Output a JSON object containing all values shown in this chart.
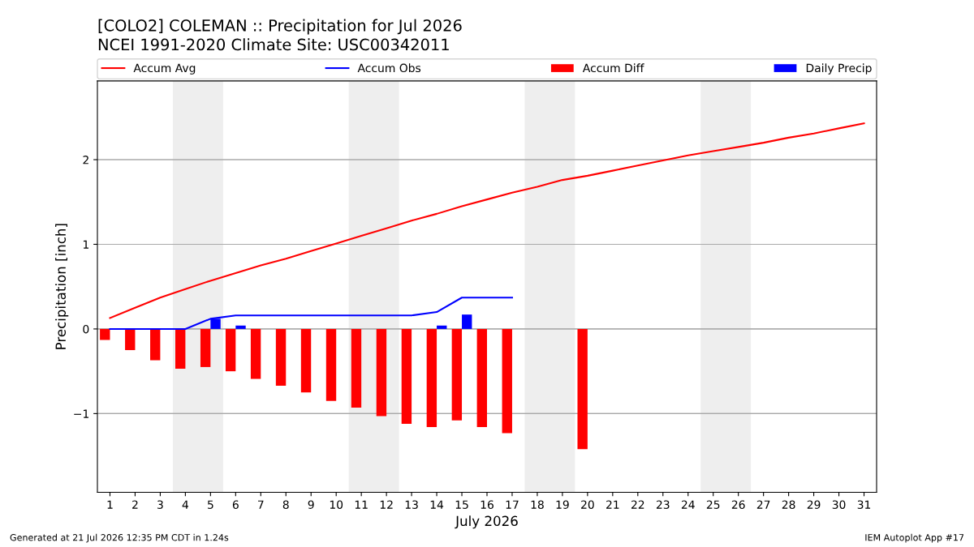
{
  "chart_data": {
    "type": "line",
    "title": "[COLO2] COLEMAN :: Precipitation for Jul 2026",
    "subtitle": "NCEI 1991-2020 Climate Site: USC00342011",
    "xlabel": "July 2026",
    "ylabel": "Precipitation [inch]",
    "x": [
      1,
      2,
      3,
      4,
      5,
      6,
      7,
      8,
      9,
      10,
      11,
      12,
      13,
      14,
      15,
      16,
      17,
      18,
      19,
      20,
      21,
      22,
      23,
      24,
      25,
      26,
      27,
      28,
      29,
      30,
      31
    ],
    "series": [
      {
        "name": "Accum Avg",
        "color": "#ff0000",
        "values": [
          0.13,
          0.25,
          0.37,
          0.47,
          0.57,
          0.66,
          0.75,
          0.83,
          0.92,
          1.01,
          1.1,
          1.19,
          1.28,
          1.36,
          1.45,
          1.53,
          1.61,
          1.68,
          1.76,
          1.81,
          1.87,
          1.93,
          1.99,
          2.05,
          2.1,
          2.15,
          2.2,
          2.26,
          2.31,
          2.37,
          2.43
        ]
      },
      {
        "name": "Accum Obs",
        "color": "#0000ff",
        "x": [
          1,
          2,
          3,
          4,
          5,
          6,
          7,
          8,
          9,
          10,
          11,
          12,
          13,
          14,
          15,
          16,
          17
        ],
        "values": [
          0,
          0,
          0,
          0,
          0.12,
          0.16,
          0.16,
          0.16,
          0.16,
          0.16,
          0.16,
          0.16,
          0.16,
          0.2,
          0.37,
          0.37,
          0.37
        ]
      },
      {
        "name": "Accum Diff",
        "type": "bar",
        "color": "#ff0000",
        "x": [
          1,
          2,
          3,
          4,
          5,
          6,
          7,
          8,
          9,
          10,
          11,
          12,
          13,
          14,
          15,
          16,
          17,
          18,
          19,
          20
        ],
        "values": [
          -0.13,
          -0.25,
          -0.37,
          -0.47,
          -0.45,
          -0.5,
          -0.59,
          -0.67,
          -0.75,
          -0.85,
          -0.93,
          -1.03,
          -1.12,
          -1.16,
          -1.08,
          -1.16,
          -1.23,
          null,
          null,
          -1.42
        ]
      },
      {
        "name": "Daily Precip",
        "type": "bar",
        "color": "#0000ff",
        "x": [
          1,
          2,
          3,
          4,
          5,
          6,
          7,
          8,
          9,
          10,
          11,
          12,
          13,
          14,
          15,
          16,
          17
        ],
        "values": [
          0,
          0,
          0,
          0,
          0.12,
          0.04,
          0,
          0,
          0,
          0,
          0,
          0,
          0,
          0.04,
          0.17,
          0,
          0
        ]
      }
    ],
    "bands": [
      {
        "axis": "x",
        "from": 3.5,
        "to": 5.5,
        "color": "#eeeeee"
      },
      {
        "axis": "x",
        "from": 10.5,
        "to": 12.5,
        "color": "#eeeeee"
      },
      {
        "axis": "x",
        "from": 17.5,
        "to": 19.5,
        "color": "#eeeeee"
      },
      {
        "axis": "x",
        "from": 24.5,
        "to": 26.5,
        "color": "#eeeeee"
      }
    ],
    "xlim": [
      0.5,
      31.5
    ],
    "xticks": [
      1,
      2,
      3,
      4,
      5,
      6,
      7,
      8,
      9,
      10,
      11,
      12,
      13,
      14,
      15,
      16,
      17,
      18,
      19,
      20,
      21,
      22,
      23,
      24,
      25,
      26,
      27,
      28,
      29,
      30,
      31
    ],
    "ylim": [
      -1.93,
      2.93
    ],
    "yticks": [
      {
        "value": -1,
        "label": "−1"
      },
      0,
      1,
      2
    ],
    "grid": "y",
    "legend": "top",
    "annotations": [
      "Generated at 21 Jul 2026 12:35 PM CDT in 1.24s",
      "IEM Autoplot App #17"
    ]
  }
}
